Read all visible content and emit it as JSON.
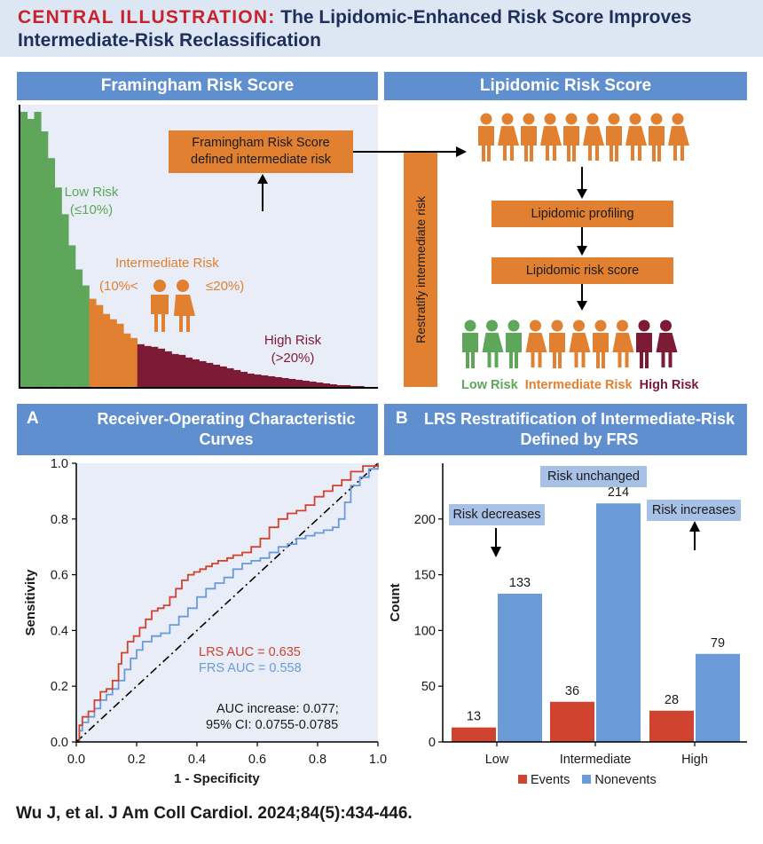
{
  "title": {
    "label": "CENTRAL ILLUSTRATION:",
    "line1": "The Lipidomic-Enhanced Risk Score Improves",
    "line2": "Intermediate-Risk Reclassification"
  },
  "framingham": {
    "header": "Framingham Risk Score",
    "low_label": "Low Risk",
    "low_range": "(≤10%)",
    "intermediate_label": "Intermediate Risk",
    "intermediate_left": "(10%<",
    "intermediate_right": "≤20%)",
    "high_label": "High Risk",
    "high_range": "(>20%)",
    "box_line1": "Framingham Risk Score",
    "box_line2": "defined intermediate risk",
    "colors": {
      "low": "#5da65a",
      "intermediate": "#e08030",
      "high": "#7d1a35"
    },
    "histogram": [
      310,
      302,
      310,
      288,
      258,
      225,
      195,
      160,
      133,
      115,
      100,
      93,
      83,
      77,
      72,
      61,
      56,
      49,
      47,
      46,
      44,
      41,
      38,
      37,
      34,
      32,
      30,
      28,
      26,
      24,
      22,
      20,
      18,
      16,
      15,
      14,
      13,
      12,
      11,
      10,
      9,
      8,
      7,
      6,
      5,
      4,
      3,
      3,
      2,
      2,
      1,
      1
    ],
    "low_end_index": 9,
    "intermediate_end_index": 16
  },
  "restratify": {
    "label": "Restratify intermediate risk"
  },
  "lipidomic": {
    "header": "Lipidomic Risk Score",
    "step1": "Lipidomic profiling",
    "step2": "Lipidomic risk score",
    "legend_low": "Low Risk",
    "legend_intermediate": "Intermediate Risk",
    "legend_high": "High Risk"
  },
  "panelA": {
    "letter": "A",
    "header_line1": "Receiver-Operating Characteristic",
    "header_line2": "Curves",
    "lrs_label": "LRS AUC = 0.635",
    "frs_label": "FRS AUC = 0.558",
    "auc_increase": "AUC increase: 0.077;",
    "ci": "95% CI: 0.0755-0.0785"
  },
  "panelB": {
    "letter": "B",
    "header_line1": "LRS Restratification of Intermediate-Risk",
    "header_line2": "Defined by FRS",
    "risk_unchanged": "Risk unchanged",
    "risk_decreases": "Risk decreases",
    "risk_increases": "Risk increases"
  },
  "chart_data": [
    {
      "type": "line",
      "title": "Receiver-Operating Characteristic Curves",
      "xlabel": "1 - Specificity",
      "ylabel": "Sensitivity",
      "xlim": [
        0,
        1
      ],
      "ylim": [
        0,
        1
      ],
      "x_ticks": [
        "0.0",
        "0.2",
        "0.4",
        "0.6",
        "0.8",
        "1.0"
      ],
      "y_ticks": [
        "0.0",
        "0.2",
        "0.4",
        "0.6",
        "0.8",
        "1.0"
      ],
      "series": [
        {
          "name": "LRS",
          "color": "#d0442f",
          "x": [
            0,
            0.01,
            0.02,
            0.04,
            0.06,
            0.08,
            0.1,
            0.12,
            0.14,
            0.15,
            0.17,
            0.19,
            0.21,
            0.23,
            0.25,
            0.27,
            0.29,
            0.31,
            0.33,
            0.35,
            0.37,
            0.39,
            0.41,
            0.43,
            0.45,
            0.47,
            0.5,
            0.52,
            0.55,
            0.58,
            0.61,
            0.64,
            0.67,
            0.7,
            0.73,
            0.76,
            0.79,
            0.82,
            0.85,
            0.88,
            0.91,
            0.95,
            1.0
          ],
          "y": [
            0,
            0.06,
            0.09,
            0.11,
            0.15,
            0.18,
            0.19,
            0.22,
            0.28,
            0.32,
            0.36,
            0.38,
            0.41,
            0.44,
            0.47,
            0.48,
            0.49,
            0.52,
            0.55,
            0.58,
            0.6,
            0.61,
            0.62,
            0.63,
            0.64,
            0.65,
            0.66,
            0.67,
            0.68,
            0.7,
            0.73,
            0.77,
            0.8,
            0.82,
            0.83,
            0.85,
            0.88,
            0.9,
            0.92,
            0.94,
            0.97,
            0.99,
            1.0
          ]
        },
        {
          "name": "FRS",
          "color": "#6a9bd8",
          "x": [
            0,
            0.01,
            0.02,
            0.04,
            0.06,
            0.08,
            0.1,
            0.12,
            0.14,
            0.16,
            0.18,
            0.2,
            0.22,
            0.25,
            0.28,
            0.31,
            0.34,
            0.37,
            0.4,
            0.43,
            0.46,
            0.49,
            0.52,
            0.55,
            0.58,
            0.61,
            0.64,
            0.67,
            0.7,
            0.73,
            0.76,
            0.79,
            0.82,
            0.85,
            0.87,
            0.89,
            0.91,
            0.94,
            0.97,
            1.0
          ],
          "y": [
            0,
            0.04,
            0.07,
            0.09,
            0.12,
            0.15,
            0.17,
            0.19,
            0.22,
            0.26,
            0.3,
            0.33,
            0.36,
            0.38,
            0.39,
            0.42,
            0.45,
            0.48,
            0.52,
            0.55,
            0.57,
            0.59,
            0.62,
            0.64,
            0.65,
            0.66,
            0.68,
            0.7,
            0.71,
            0.73,
            0.74,
            0.75,
            0.76,
            0.77,
            0.8,
            0.86,
            0.92,
            0.95,
            0.98,
            1.0
          ]
        },
        {
          "name": "Reference",
          "color": "#000000",
          "x": [
            0,
            1
          ],
          "y": [
            0,
            1
          ]
        }
      ],
      "annotations": [
        "LRS AUC = 0.635",
        "FRS AUC = 0.558",
        "AUC increase: 0.077;",
        "95% CI: 0.0755-0.0785"
      ]
    },
    {
      "type": "bar",
      "title": "LRS Restratification of Intermediate-Risk Defined by FRS",
      "xlabel": "",
      "ylabel": "Count",
      "ylim": [
        0,
        250
      ],
      "y_ticks": [
        "0",
        "50",
        "100",
        "150",
        "200"
      ],
      "categories": [
        "Low",
        "Intermediate",
        "High"
      ],
      "series": [
        {
          "name": "Events",
          "color": "#d0442f",
          "values": [
            13,
            36,
            28
          ],
          "labels": [
            "13",
            "36",
            "28"
          ]
        },
        {
          "name": "Nonevents",
          "color": "#6a9bd8",
          "values": [
            133,
            214,
            79
          ],
          "labels": [
            "133",
            "214",
            "79"
          ]
        }
      ],
      "legend": "bottom"
    }
  ],
  "footer": {
    "citation": "Wu J, et al. J Am Coll Cardiol. 2024;84(5):434-446."
  }
}
